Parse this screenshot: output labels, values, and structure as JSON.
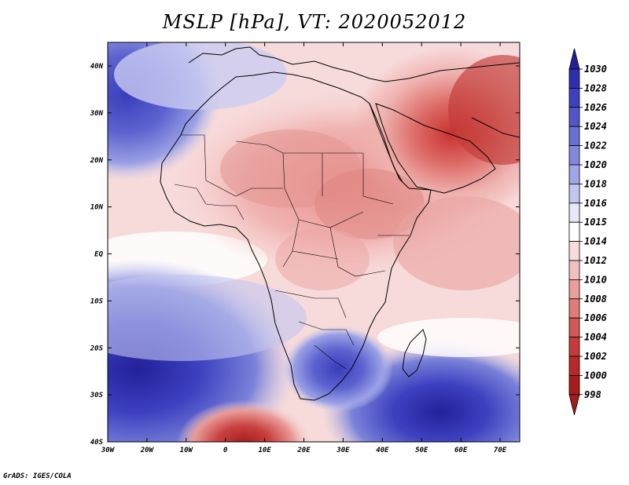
{
  "title": "MSLP [hPa], VT: 2020052012",
  "credit": "GrADS: IGES/COLA",
  "map": {
    "region": "Africa and Middle East",
    "lon_range": [
      -30,
      75
    ],
    "lat_range": [
      -40,
      45
    ],
    "lat_ticks": [
      "40N",
      "30N",
      "20N",
      "10N",
      "EQ",
      "10S",
      "20S",
      "30S",
      "40S"
    ],
    "lon_ticks": [
      "30W",
      "20W",
      "10W",
      "0",
      "10E",
      "20E",
      "30E",
      "40E",
      "50E",
      "60E",
      "70E"
    ]
  },
  "colorbar": {
    "levels": [
      "1030",
      "1028",
      "1026",
      "1024",
      "1022",
      "1020",
      "1018",
      "1016",
      "1015",
      "1014",
      "1012",
      "1010",
      "1008",
      "1006",
      "1004",
      "1002",
      "1000",
      "998"
    ],
    "colors": [
      "#23209a",
      "#2e2fb0",
      "#3d41c0",
      "#5157c9",
      "#6870d2",
      "#8289dc",
      "#a0a6e6",
      "#c3c6f0",
      "#e6e7f8",
      "#ffffff",
      "#f8dcdc",
      "#f2c0bf",
      "#ea9f9d",
      "#e07c79",
      "#d45856",
      "#c63b3a",
      "#b82a2a",
      "#a41c1c"
    ]
  }
}
